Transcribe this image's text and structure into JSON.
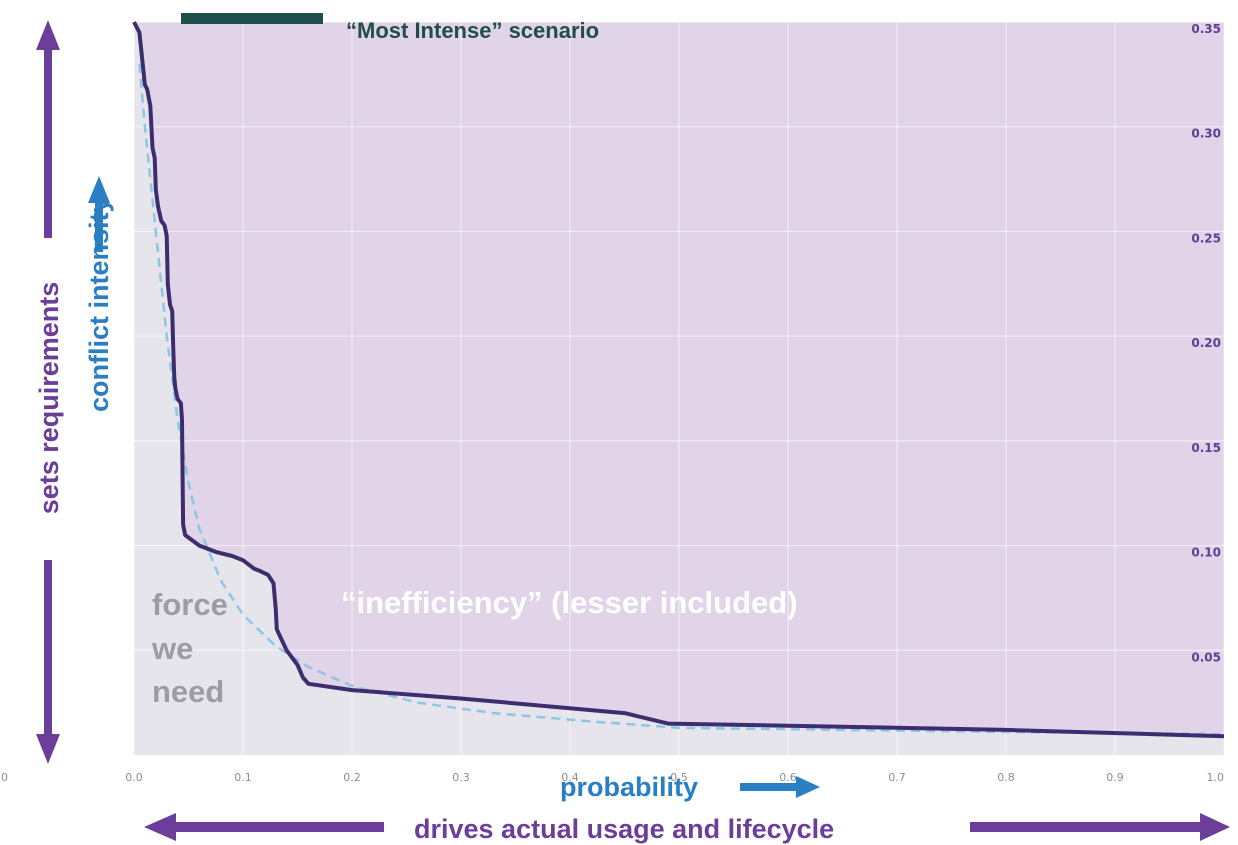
{
  "chart_data": {
    "type": "line",
    "legend": {
      "label": "“Most Intense” scenario",
      "color": "#1f4e4b",
      "placement": "top"
    },
    "xlim": [
      0,
      1.0
    ],
    "ylim": [
      0,
      0.35
    ],
    "x_ticks": [
      "0.0",
      "0.1",
      "0.2",
      "0.3",
      "0.4",
      "0.5",
      "0.6",
      "0.7",
      "0.8",
      "0.9",
      "1.0"
    ],
    "y_ticks": [
      "0.05",
      "0.10",
      "0.15",
      "0.20",
      "0.25",
      "0.30",
      "0.35"
    ],
    "y_axis_side": "right",
    "grid": true,
    "colors": {
      "inefficiency_fill": "#e1d4e8",
      "force_fill": "#e6e5ec",
      "grid": "#ffffff",
      "solid_line": "#3c2e6e",
      "dashed_line": "#8ec6e6",
      "purple_arrow": "#6c3d99",
      "blue_arrow": "#2a7fc4"
    },
    "series": [
      {
        "style": "solid",
        "points": [
          [
            0.0,
            0.35
          ],
          [
            0.005,
            0.345
          ],
          [
            0.008,
            0.33
          ],
          [
            0.01,
            0.32
          ],
          [
            0.012,
            0.318
          ],
          [
            0.015,
            0.31
          ],
          [
            0.017,
            0.29
          ],
          [
            0.019,
            0.285
          ],
          [
            0.02,
            0.27
          ],
          [
            0.022,
            0.262
          ],
          [
            0.025,
            0.255
          ],
          [
            0.028,
            0.253
          ],
          [
            0.03,
            0.248
          ],
          [
            0.031,
            0.225
          ],
          [
            0.033,
            0.215
          ],
          [
            0.035,
            0.212
          ],
          [
            0.036,
            0.195
          ],
          [
            0.037,
            0.18
          ],
          [
            0.038,
            0.175
          ],
          [
            0.04,
            0.17
          ],
          [
            0.043,
            0.168
          ],
          [
            0.044,
            0.16
          ],
          [
            0.045,
            0.11
          ],
          [
            0.047,
            0.105
          ],
          [
            0.06,
            0.1
          ],
          [
            0.075,
            0.097
          ],
          [
            0.09,
            0.095
          ],
          [
            0.1,
            0.093
          ],
          [
            0.11,
            0.089
          ],
          [
            0.115,
            0.088
          ],
          [
            0.123,
            0.086
          ],
          [
            0.128,
            0.082
          ],
          [
            0.13,
            0.07
          ],
          [
            0.131,
            0.06
          ],
          [
            0.14,
            0.05
          ],
          [
            0.15,
            0.043
          ],
          [
            0.155,
            0.037
          ],
          [
            0.16,
            0.034
          ],
          [
            0.2,
            0.031
          ],
          [
            0.3,
            0.027
          ],
          [
            0.45,
            0.02
          ],
          [
            0.49,
            0.015
          ],
          [
            0.6,
            0.014
          ],
          [
            0.8,
            0.012
          ],
          [
            1.0,
            0.009
          ]
        ]
      },
      {
        "style": "dashed",
        "points": [
          [
            0.005,
            0.33
          ],
          [
            0.01,
            0.3
          ],
          [
            0.02,
            0.25
          ],
          [
            0.03,
            0.2
          ],
          [
            0.04,
            0.16
          ],
          [
            0.05,
            0.13
          ],
          [
            0.06,
            0.108
          ],
          [
            0.08,
            0.083
          ],
          [
            0.1,
            0.067
          ],
          [
            0.13,
            0.052
          ],
          [
            0.16,
            0.042
          ],
          [
            0.2,
            0.033
          ],
          [
            0.26,
            0.025
          ],
          [
            0.33,
            0.02
          ],
          [
            0.42,
            0.016
          ],
          [
            0.5,
            0.013
          ],
          [
            0.65,
            0.012
          ],
          [
            0.8,
            0.011
          ],
          [
            1.0,
            0.01
          ]
        ]
      }
    ],
    "annotations": {
      "inefficiency": "“inefficiency” (lesser included)",
      "force_lines": [
        "force",
        "we",
        "need"
      ]
    },
    "axis_labels": {
      "y_inner": "conflict intensity",
      "y_outer": "sets requirements",
      "x_inner": "probability",
      "x_outer": "drives actual usage and lifecycle"
    },
    "left_edge_fragment": "0"
  }
}
